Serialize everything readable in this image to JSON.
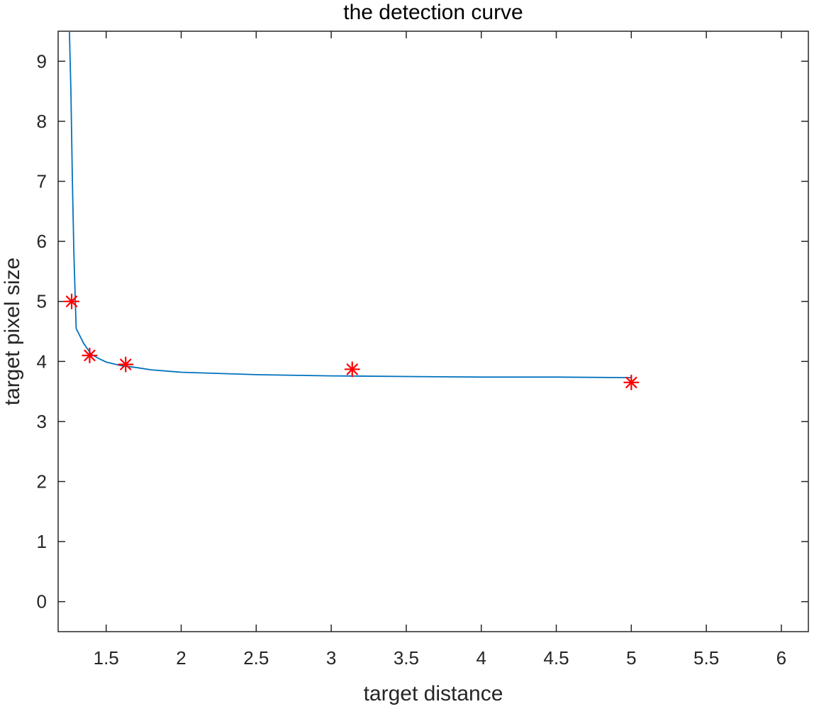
{
  "chart_data": {
    "type": "line",
    "title": "the detection curve",
    "xlabel": "target distance",
    "ylabel": "target pixel size",
    "xlim": [
      1.18,
      6.18
    ],
    "ylim": [
      -0.5,
      9.5
    ],
    "x_ticks": [
      1.5,
      2,
      2.5,
      3,
      3.5,
      4,
      4.5,
      5,
      5.5,
      6
    ],
    "x_tick_labels": [
      "1.5",
      "2",
      "2.5",
      "3",
      "3.5",
      "4",
      "4.5",
      "5",
      "5.5",
      "6"
    ],
    "y_ticks": [
      0,
      1,
      2,
      3,
      4,
      5,
      6,
      7,
      8,
      9
    ],
    "y_tick_labels": [
      "0",
      "1",
      "2",
      "3",
      "4",
      "5",
      "6",
      "7",
      "8",
      "9"
    ],
    "grid": false,
    "series": [
      {
        "style": "line",
        "color": "#0072BD",
        "x": [
          1.255,
          1.265,
          1.275,
          1.285,
          1.3,
          1.35,
          1.4,
          1.45,
          1.5,
          1.6,
          1.7,
          1.8,
          2.0,
          2.5,
          3.0,
          3.5,
          4.0,
          4.5,
          5.0
        ],
        "y": [
          9.5,
          8.5,
          7.0,
          5.8,
          4.55,
          4.3,
          4.12,
          4.05,
          3.99,
          3.93,
          3.9,
          3.86,
          3.82,
          3.78,
          3.76,
          3.75,
          3.74,
          3.74,
          3.73
        ]
      },
      {
        "style": "markers",
        "marker": "asterisk",
        "color": "#FF0000",
        "x": [
          1.27,
          1.39,
          1.63,
          3.14,
          5.0
        ],
        "y": [
          5.0,
          4.1,
          3.95,
          3.87,
          3.65
        ]
      }
    ]
  }
}
